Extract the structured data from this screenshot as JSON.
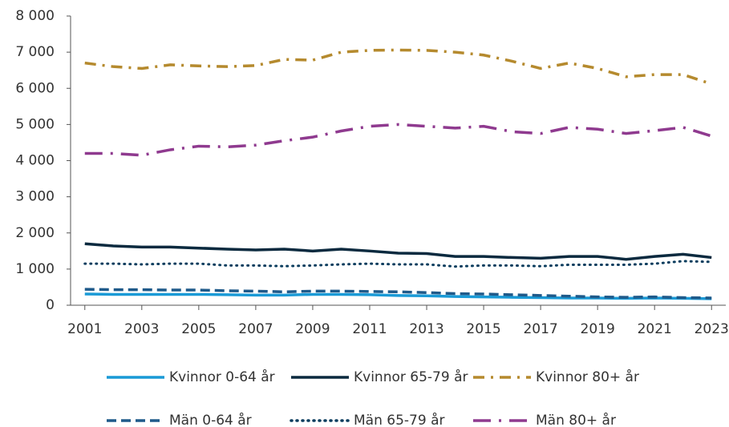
{
  "chart_data": {
    "type": "line",
    "x": [
      2001,
      2002,
      2003,
      2004,
      2005,
      2006,
      2007,
      2008,
      2009,
      2010,
      2011,
      2012,
      2013,
      2014,
      2015,
      2016,
      2017,
      2018,
      2019,
      2020,
      2021,
      2022,
      2023
    ],
    "xlim": [
      2000.5,
      2023.5
    ],
    "xticks": [
      2001,
      2003,
      2005,
      2007,
      2009,
      2011,
      2013,
      2015,
      2017,
      2019,
      2021,
      2023
    ],
    "ylim": [
      0,
      8000
    ],
    "yticks": [
      0,
      {
        "value": 1000,
        "label": "1 000"
      },
      {
        "value": 2000,
        "label": "2 000"
      },
      {
        "value": 3000,
        "label": "3 000"
      },
      {
        "value": 4000,
        "label": "4 000"
      },
      {
        "value": 5000,
        "label": "5 000"
      },
      {
        "value": 6000,
        "label": "6 000"
      },
      {
        "value": 7000,
        "label": "7 000"
      },
      {
        "value": 8000,
        "label": "8 000"
      }
    ],
    "series": [
      {
        "name": "Kvinnor 0-64 år",
        "color": "#1a9ad6",
        "dash": "solid",
        "values": [
          310,
          300,
          300,
          300,
          300,
          290,
          280,
          280,
          300,
          300,
          290,
          270,
          260,
          240,
          230,
          220,
          210,
          200,
          200,
          190,
          200,
          190,
          180
        ]
      },
      {
        "name": "Kvinnor 65-79 år",
        "color": "#0b2a3f",
        "dash": "solid",
        "values": [
          1700,
          1640,
          1610,
          1610,
          1580,
          1550,
          1530,
          1550,
          1500,
          1550,
          1500,
          1440,
          1430,
          1350,
          1350,
          1320,
          1300,
          1350,
          1350,
          1270,
          1350,
          1410,
          1320
        ]
      },
      {
        "name": "Kvinnor 80+ år",
        "color": "#b58a2e",
        "dash": "dashdot",
        "values": [
          6700,
          6600,
          6550,
          6650,
          6620,
          6600,
          6630,
          6800,
          6780,
          7000,
          7050,
          7060,
          7050,
          7000,
          6920,
          6750,
          6550,
          6700,
          6550,
          6320,
          6380,
          6380,
          6120
        ]
      },
      {
        "name": "Män 0-64 år",
        "color": "#1f5a8a",
        "dash": "dashed",
        "values": [
          440,
          430,
          430,
          420,
          420,
          400,
          390,
          370,
          390,
          390,
          380,
          370,
          350,
          320,
          310,
          290,
          270,
          250,
          230,
          220,
          230,
          210,
          200
        ]
      },
      {
        "name": "Män 65-79 år",
        "color": "#0b3d5e",
        "dash": "dotted",
        "values": [
          1150,
          1150,
          1130,
          1150,
          1150,
          1100,
          1100,
          1080,
          1100,
          1130,
          1150,
          1130,
          1130,
          1070,
          1100,
          1100,
          1080,
          1120,
          1120,
          1120,
          1150,
          1220,
          1200
        ]
      },
      {
        "name": "Män 80+ år",
        "color": "#8f3a8f",
        "dash": "longdashdot",
        "values": [
          4200,
          4200,
          4150,
          4300,
          4400,
          4380,
          4430,
          4550,
          4650,
          4820,
          4950,
          5000,
          4950,
          4900,
          4950,
          4800,
          4750,
          4920,
          4870,
          4750,
          4830,
          4920,
          4680
        ]
      }
    ],
    "legend": "bottom"
  }
}
